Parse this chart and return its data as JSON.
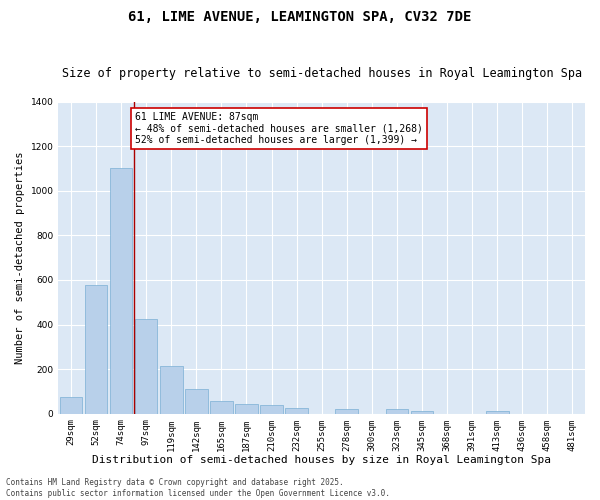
{
  "title": "61, LIME AVENUE, LEAMINGTON SPA, CV32 7DE",
  "subtitle": "Size of property relative to semi-detached houses in Royal Leamington Spa",
  "xlabel": "Distribution of semi-detached houses by size in Royal Leamington Spa",
  "ylabel": "Number of semi-detached properties",
  "categories": [
    "29sqm",
    "52sqm",
    "74sqm",
    "97sqm",
    "119sqm",
    "142sqm",
    "165sqm",
    "187sqm",
    "210sqm",
    "232sqm",
    "255sqm",
    "278sqm",
    "300sqm",
    "323sqm",
    "345sqm",
    "368sqm",
    "391sqm",
    "413sqm",
    "436sqm",
    "458sqm",
    "481sqm"
  ],
  "values": [
    75,
    575,
    1100,
    425,
    215,
    110,
    58,
    45,
    38,
    25,
    0,
    22,
    0,
    20,
    10,
    0,
    0,
    10,
    0,
    0,
    0
  ],
  "bar_color": "#b8d0ea",
  "bar_edge_color": "#7aafd4",
  "vline_index": 2,
  "vline_color": "#aa0000",
  "ylim": [
    0,
    1400
  ],
  "yticks": [
    0,
    200,
    400,
    600,
    800,
    1000,
    1200,
    1400
  ],
  "annotation_text": "61 LIME AVENUE: 87sqm\n← 48% of semi-detached houses are smaller (1,268)\n52% of semi-detached houses are larger (1,399) →",
  "annotation_box_color": "#cc0000",
  "background_color": "#dce8f5",
  "grid_color": "#ffffff",
  "footer": "Contains HM Land Registry data © Crown copyright and database right 2025.\nContains public sector information licensed under the Open Government Licence v3.0.",
  "title_fontsize": 10,
  "subtitle_fontsize": 8.5,
  "xlabel_fontsize": 8,
  "ylabel_fontsize": 7.5,
  "tick_fontsize": 6.5,
  "annotation_fontsize": 7,
  "footer_fontsize": 5.5
}
